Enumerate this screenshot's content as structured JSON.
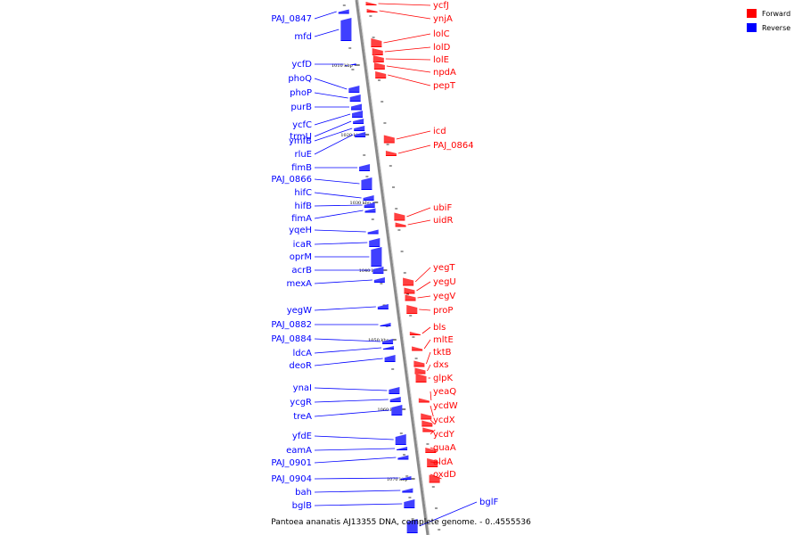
{
  "caption": "Pantoea ananatis AJ13355 DNA, complete genome. - 0..4555536",
  "legend": [
    {
      "label": "Forward",
      "color": "#ff0000"
    },
    {
      "label": "Reverse",
      "color": "#0000ff"
    }
  ],
  "ticks": [
    "1010 kbp",
    "1020 kbp",
    "1030 kbp",
    "1040 kbp",
    "1050 kbp",
    "1060 kbp",
    "1070 kbp"
  ],
  "forward_genes": [
    "ycfJ",
    "ynjA",
    "lolC",
    "lolD",
    "lolE",
    "npdA",
    "pepT",
    "icd",
    "PAJ_0864",
    "ubiF",
    "uidR",
    "yegT",
    "yegU",
    "yegV",
    "proP",
    "bls",
    "mltE",
    "tktB",
    "dxs",
    "glpK",
    "yeaQ",
    "ycdW",
    "ycdX",
    "ycdY",
    "guaA",
    "aldA",
    "oxdD"
  ],
  "reverse_genes": [
    "PAJ_0847",
    "mfd",
    "ycfD",
    "phoQ",
    "phoP",
    "purB",
    "ycfC",
    "trmU",
    "ymfB",
    "rluE",
    "fimB",
    "PAJ_0866",
    "hifC",
    "hifB",
    "fimA",
    "yqeH",
    "icaR",
    "oprM",
    "acrB",
    "mexA",
    "yegW",
    "PAJ_0882",
    "PAJ_0884",
    "ldcA",
    "deoR",
    "ynaI",
    "ycgR",
    "treA",
    "yfdE",
    "eamA",
    "PAJ_0901",
    "PAJ_0904",
    "bah",
    "bglB",
    "bglF"
  ]
}
